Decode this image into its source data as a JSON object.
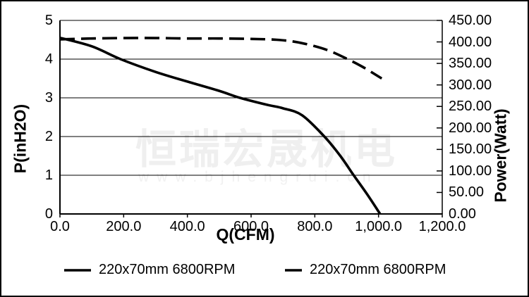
{
  "watermark": {
    "text": "恒瑞宏晟机电",
    "url": "www.bjhengrui.cn"
  },
  "chart_data": {
    "type": "line",
    "title": "",
    "xlabel": "Q(CFM)",
    "ylabel_left": "P(inH2O)",
    "ylabel_right": "Power(Watt)",
    "xlim": [
      0,
      1200
    ],
    "ylim_left": [
      0,
      5
    ],
    "ylim_right": [
      0,
      450
    ],
    "grid": "horizontal-only",
    "legend_position": "bottom",
    "x_axis": {
      "labels": [
        "0.0",
        "200.0",
        "400.0",
        "600.0",
        "800.0",
        "1,000.0",
        "1,200.0"
      ],
      "values": [
        0,
        200,
        400,
        600,
        800,
        1000,
        1200
      ]
    },
    "left_axis": {
      "labels": [
        "5",
        "4",
        "3",
        "2",
        "1",
        "0"
      ],
      "values": [
        5,
        4,
        3,
        2,
        1,
        0
      ]
    },
    "right_axis": {
      "labels": [
        "450.00",
        "400.00",
        "350.00",
        "300.00",
        "250.00",
        "200.00",
        "150.00",
        "100.00",
        "50.00",
        "0.00"
      ],
      "values": [
        450,
        400,
        350,
        300,
        250,
        200,
        150,
        100,
        50,
        0
      ]
    },
    "series": [
      {
        "name": "220x70mm 6800RPM",
        "axis": "left",
        "style": "solid",
        "color": "#000000",
        "points": [
          [
            0,
            4.55
          ],
          [
            100,
            4.33
          ],
          [
            190,
            4.0
          ],
          [
            300,
            3.67
          ],
          [
            400,
            3.42
          ],
          [
            500,
            3.18
          ],
          [
            565,
            3.0
          ],
          [
            650,
            2.82
          ],
          [
            700,
            2.73
          ],
          [
            760,
            2.55
          ],
          [
            830,
            2.0
          ],
          [
            880,
            1.5
          ],
          [
            922,
            1.0
          ],
          [
            965,
            0.5
          ],
          [
            1005,
            0.0
          ]
        ]
      },
      {
        "name": "220x70mm 6800RPM",
        "axis": "right",
        "style": "dashed",
        "color": "#000000",
        "points": [
          [
            0,
            406
          ],
          [
            100,
            408
          ],
          [
            200,
            409
          ],
          [
            300,
            409
          ],
          [
            400,
            408
          ],
          [
            500,
            408
          ],
          [
            600,
            407
          ],
          [
            680,
            405
          ],
          [
            740,
            400
          ],
          [
            800,
            390
          ],
          [
            850,
            378
          ],
          [
            900,
            361
          ],
          [
            950,
            342
          ],
          [
            1010,
            315
          ]
        ]
      }
    ]
  },
  "legend": {
    "items": [
      {
        "label": "220x70mm 6800RPM",
        "style": "solid"
      },
      {
        "label": "220x70mm 6800RPM",
        "style": "dashed"
      }
    ]
  },
  "colors": {
    "line": "#000000",
    "grid": "#000000",
    "background": "#ffffff",
    "watermark": "#efefef"
  }
}
